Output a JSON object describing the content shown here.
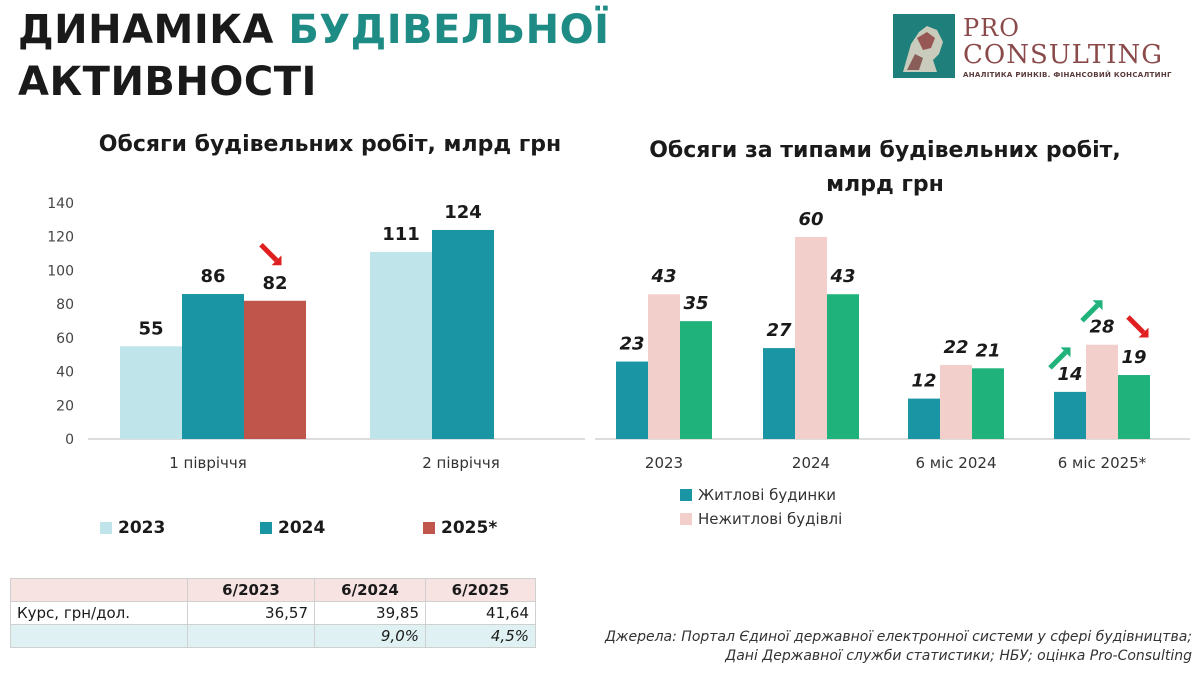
{
  "title": {
    "line1_dark": "ДИНАМІКА",
    "line1_accent": "БУДІВЕЛЬНОЇ",
    "line2": "АКТИВНОСТІ"
  },
  "logo": {
    "pro": "PRO",
    "consulting": "CONSULTING",
    "tagline": "АНАЛІТИКА РИНКІВ. ФІНАНСОВИЙ КОНСАЛТИНГ"
  },
  "colors": {
    "teal": "#1a95a3",
    "light_teal": "#bfe5ea",
    "red": "#c0564b",
    "pink": "#f3cfcc",
    "green": "#1fb27a",
    "accent": "#1e8c84"
  },
  "chart_data": [
    {
      "type": "bar",
      "title": "Обсяги будівельних робіт, млрд грн",
      "categories": [
        "1 півріччя",
        "2 півріччя"
      ],
      "series": [
        {
          "name": "2023",
          "color": "#bfe5ea",
          "values": [
            55,
            111
          ]
        },
        {
          "name": "2024",
          "color": "#1a95a3",
          "values": [
            86,
            124
          ]
        },
        {
          "name": "2025*",
          "color": "#c0564b",
          "values": [
            82,
            null
          ]
        }
      ],
      "ylim": [
        0,
        140
      ],
      "yticks": [
        0,
        20,
        40,
        60,
        80,
        100,
        120,
        140
      ],
      "annotations": [
        {
          "category": "1 півріччя",
          "series": "2025*",
          "arrow": "down",
          "color": "#e02020"
        }
      ],
      "legend": "bottom"
    },
    {
      "type": "bar",
      "title": "Обсяги за типами будівельних робіт, млрд грн",
      "categories": [
        "2023",
        "2024",
        "6 міс 2024",
        "6 міс 2025*"
      ],
      "series": [
        {
          "name": "Житлові будинки",
          "color": "#1a95a3",
          "values": [
            23,
            27,
            12,
            14
          ]
        },
        {
          "name": "Нежитлові будівлі",
          "color": "#f3cfcc",
          "values": [
            43,
            60,
            22,
            28
          ]
        },
        {
          "name": "",
          "color": "#1fb27a",
          "values": [
            35,
            43,
            21,
            19
          ]
        }
      ],
      "ylim": [
        0,
        60
      ],
      "annotations": [
        {
          "category": "6 міс 2025*",
          "series": 0,
          "arrow": "up",
          "color": "#1fb27a"
        },
        {
          "category": "6 міс 2025*",
          "series": 1,
          "arrow": "up",
          "color": "#1fb27a"
        },
        {
          "category": "6 міс 2025*",
          "series": 2,
          "arrow": "down",
          "color": "#e02020"
        }
      ],
      "legend": "bottom-left"
    }
  ],
  "rate_table": {
    "header": [
      "",
      "6/2023",
      "6/2024",
      "6/2025"
    ],
    "rows": [
      [
        "Курс, грн/дол.",
        "36,57",
        "39,85",
        "41,64"
      ],
      [
        "",
        "",
        "9,0%",
        "4,5%"
      ]
    ]
  },
  "sources": {
    "line1": "Джерела: Портал Єдиної державної електронної системи у сфері будівництва;",
    "line2": "Дані Державної служби статистики; НБУ; оцінка Pro-Consulting"
  }
}
